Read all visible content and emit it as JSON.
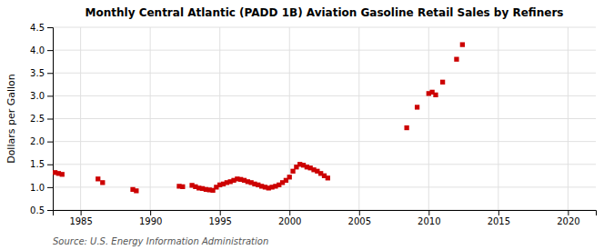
{
  "chart_data": {
    "type": "scatter",
    "title": "Monthly Central Atlantic (PADD 1B) Aviation Gasoline Retail Sales by Refiners",
    "ylabel": "Dollars per Gallon",
    "source": "Source: U.S. Energy Information Administration",
    "color": "#cc0000",
    "marker": "square",
    "grid": true,
    "xlim": [
      1983,
      2022
    ],
    "ylim": [
      0.5,
      4.5
    ],
    "xticks": [
      1985,
      1990,
      1995,
      2000,
      2005,
      2010,
      2015,
      2020
    ],
    "yticks": [
      0.5,
      {
        "value": 1.0,
        "label": "1.0"
      },
      1.5,
      {
        "value": 2.0,
        "label": "2.0"
      },
      2.5,
      {
        "value": 3.0,
        "label": "3.0"
      },
      3.5,
      {
        "value": 4.0,
        "label": "4.0"
      },
      4.5
    ],
    "x": [
      1983.17,
      1983.42,
      1983.67,
      1986.25,
      1986.58,
      1988.75,
      1989.0,
      1992.08,
      1992.33,
      1993.0,
      1993.25,
      1993.5,
      1993.75,
      1994.0,
      1994.25,
      1994.5,
      1994.75,
      1995.0,
      1995.25,
      1995.5,
      1995.75,
      1996.0,
      1996.25,
      1996.5,
      1996.75,
      1997.0,
      1997.25,
      1997.5,
      1997.75,
      1998.0,
      1998.25,
      1998.5,
      1998.75,
      1999.0,
      1999.25,
      1999.5,
      1999.75,
      2000.0,
      2000.25,
      2000.5,
      2000.75,
      2001.0,
      2001.25,
      2001.5,
      2001.75,
      2002.0,
      2002.25,
      2002.5,
      2002.75,
      2008.42,
      2009.17,
      2010.0,
      2010.25,
      2010.5,
      2011.0,
      2012.0,
      2012.42
    ],
    "values": [
      1.32,
      1.3,
      1.28,
      1.18,
      1.1,
      0.95,
      0.92,
      1.02,
      1.01,
      1.04,
      1.01,
      0.98,
      0.97,
      0.95,
      0.94,
      0.93,
      1.0,
      1.05,
      1.07,
      1.1,
      1.12,
      1.15,
      1.18,
      1.17,
      1.15,
      1.12,
      1.1,
      1.07,
      1.05,
      1.02,
      1.0,
      0.98,
      1.0,
      1.02,
      1.05,
      1.1,
      1.15,
      1.22,
      1.35,
      1.44,
      1.5,
      1.48,
      1.44,
      1.42,
      1.38,
      1.35,
      1.3,
      1.25,
      1.2,
      2.3,
      2.75,
      3.05,
      3.08,
      3.02,
      3.3,
      3.8,
      4.12
    ]
  }
}
